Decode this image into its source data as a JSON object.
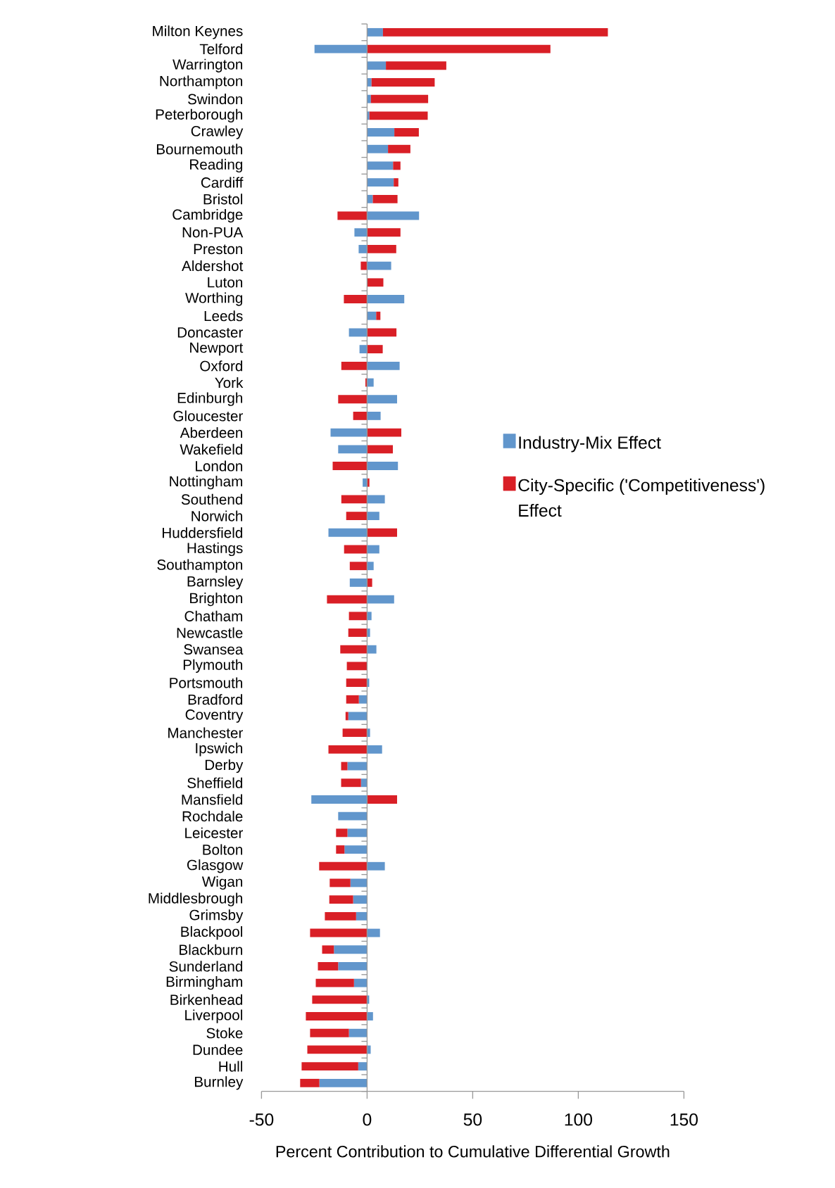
{
  "chart_data": {
    "type": "bar",
    "orientation": "horizontal",
    "stacked": true,
    "categories": [
      "Milton Keynes",
      "Telford",
      "Warrington",
      "Northampton",
      "Swindon",
      "Peterborough",
      "Crawley",
      "Bournemouth",
      "Reading",
      "Cardiff",
      "Bristol",
      "Cambridge",
      "Non-PUA",
      "Preston",
      "Aldershot",
      "Luton",
      "Worthing",
      "Leeds",
      "Doncaster",
      "Newport",
      "Oxford",
      "York",
      "Edinburgh",
      "Gloucester",
      "Aberdeen",
      "Wakefield",
      "London",
      "Nottingham",
      "Southend",
      "Norwich",
      "Huddersfield",
      "Hastings",
      "Southampton",
      "Barnsley",
      "Brighton",
      "Chatham",
      "Newcastle",
      "Swansea",
      "Plymouth",
      "Portsmouth",
      "Bradford",
      "Coventry",
      "Manchester",
      "Ipswich",
      "Derby",
      "Sheffield",
      "Mansfield",
      "Rochdale",
      "Leicester",
      "Bolton",
      "Glasgow",
      "Wigan",
      "Middlesbrough",
      "Grimsby",
      "Blackpool",
      "Blackburn",
      "Sunderland",
      "Birmingham",
      "Birkenhead",
      "Liverpool",
      "Stoke",
      "Dundee",
      "Hull",
      "Burnley"
    ],
    "series": [
      {
        "name": "Industry-Mix Effect",
        "color": "#6196cc",
        "values": [
          7.5,
          -24.9,
          8.9,
          2.1,
          1.8,
          1.1,
          12.9,
          9.9,
          12.3,
          12.6,
          2.7,
          24.6,
          -6.0,
          -4.0,
          11.4,
          0,
          17.6,
          4.3,
          -8.6,
          -3.6,
          15.4,
          3.1,
          14.2,
          6.4,
          -17.3,
          -13.7,
          14.6,
          -2.1,
          8.4,
          5.8,
          -18.3,
          5.8,
          3.1,
          -8.2,
          12.8,
          2.1,
          1.4,
          4.4,
          null,
          1.0,
          -3.9,
          -8.9,
          1.4,
          7.1,
          -9.3,
          -2.9,
          -26.4,
          -13.7,
          -9.3,
          -10.7,
          8.4,
          -7.9,
          -6.6,
          -5.2,
          6.1,
          -15.7,
          -13.7,
          -6.2,
          1.0,
          2.8,
          -8.6,
          1.7,
          -4.2,
          -22.6
        ]
      },
      {
        "name": "City-Specific ('Competitiveness') Effect",
        "color": "#d91f26",
        "values": [
          106.5,
          86.8,
          28.6,
          29.9,
          27.1,
          27.6,
          11.6,
          10.6,
          3.5,
          2.2,
          11.7,
          -14.0,
          15.8,
          13.8,
          -3.0,
          7.7,
          -11.0,
          2.0,
          13.9,
          7.4,
          -12.2,
          -0.8,
          -13.7,
          -6.6,
          16.2,
          12.2,
          -16.3,
          1.1,
          -12.2,
          -9.9,
          14.2,
          -10.9,
          -8.2,
          2.4,
          -19.0,
          -8.6,
          -8.9,
          -12.7,
          -9.6,
          -9.9,
          -6.0,
          -1.3,
          -11.6,
          -18.3,
          -3.0,
          -9.4,
          14.2,
          0,
          -5.4,
          -4.0,
          -22.7,
          -9.8,
          -11.3,
          -14.8,
          -27.0,
          -5.6,
          -9.6,
          -18.1,
          -26.0,
          -29.0,
          -18.4,
          -28.3,
          -26.8,
          -9.1
        ]
      }
    ],
    "xlim": [
      -50,
      150
    ],
    "xticks": [
      -50,
      0,
      50,
      100,
      150
    ],
    "xlabel": "Percent Contribution to Cumulative Differential Growth",
    "legend": "right"
  }
}
